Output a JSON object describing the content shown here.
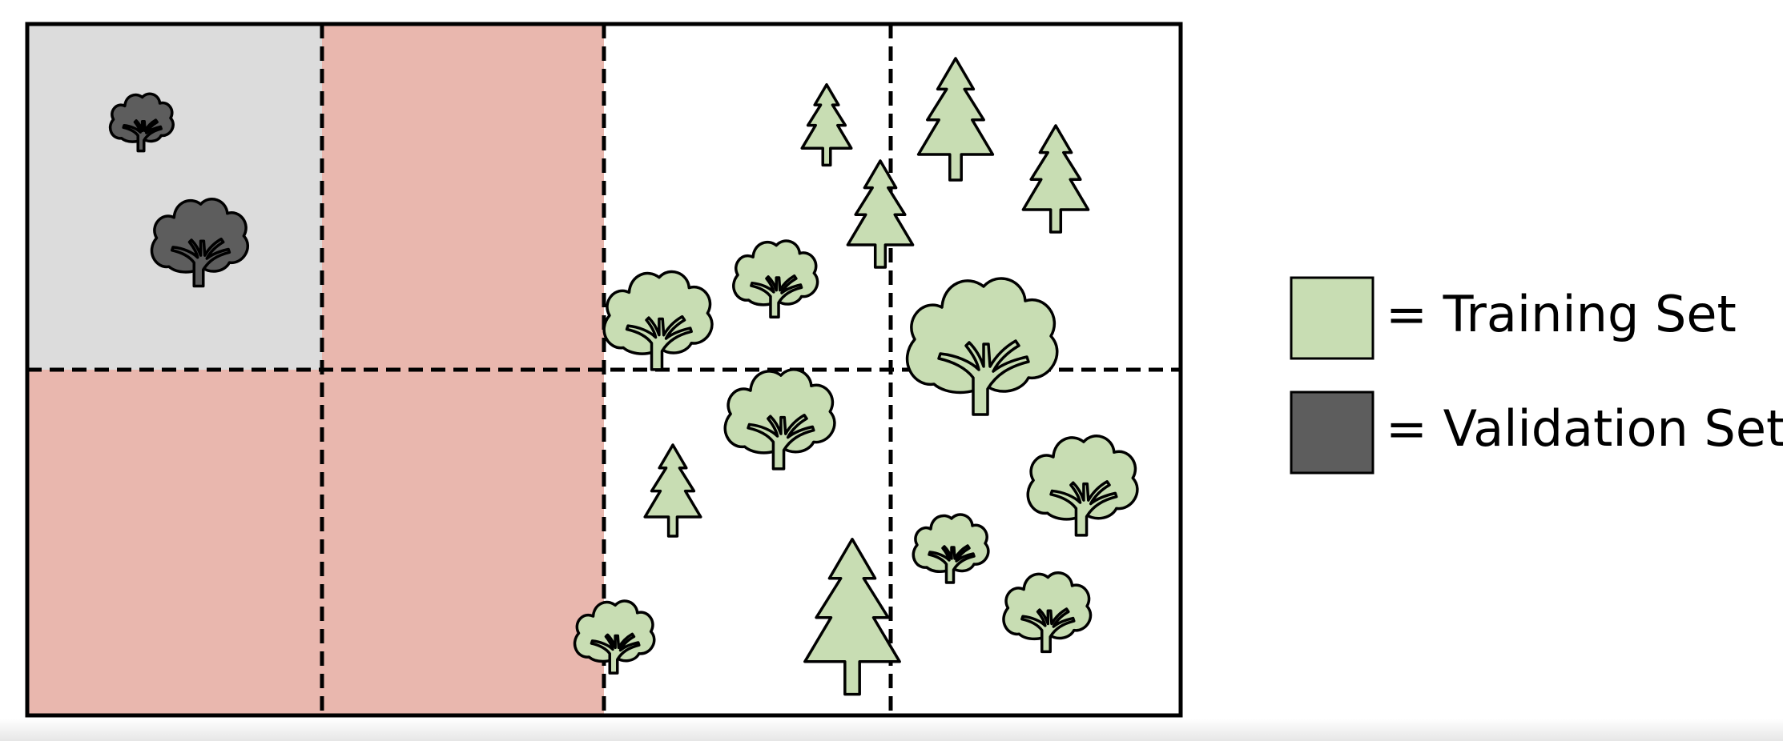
{
  "colors": {
    "training": "#c8ddb3",
    "validation": "#5d5d5d",
    "validation_cell": "#dcdcdc",
    "excluded_cell": "#e9b7ae",
    "open_cell": "#ffffff",
    "outline": "#000000"
  },
  "legend": {
    "training_label": "= Training Set",
    "validation_label": "= Validation Set"
  },
  "grid": {
    "columns": 4,
    "rows": 2,
    "cells": [
      {
        "row": 0,
        "col": 0,
        "state": "validation"
      },
      {
        "row": 0,
        "col": 1,
        "state": "excluded"
      },
      {
        "row": 0,
        "col": 2,
        "state": "open"
      },
      {
        "row": 0,
        "col": 3,
        "state": "open"
      },
      {
        "row": 1,
        "col": 0,
        "state": "excluded"
      },
      {
        "row": 1,
        "col": 1,
        "state": "excluded"
      },
      {
        "row": 1,
        "col": 2,
        "state": "open"
      },
      {
        "row": 1,
        "col": 3,
        "state": "open"
      }
    ]
  },
  "trees": [
    {
      "kind": "deciduous",
      "set": "validation"
    },
    {
      "kind": "deciduous",
      "set": "validation"
    },
    {
      "kind": "conifer",
      "set": "training"
    },
    {
      "kind": "conifer",
      "set": "training"
    },
    {
      "kind": "conifer",
      "set": "training"
    },
    {
      "kind": "conifer",
      "set": "training"
    },
    {
      "kind": "deciduous",
      "set": "training"
    },
    {
      "kind": "deciduous",
      "set": "training"
    },
    {
      "kind": "deciduous",
      "set": "training"
    },
    {
      "kind": "deciduous",
      "set": "training"
    },
    {
      "kind": "conifer",
      "set": "training"
    },
    {
      "kind": "deciduous",
      "set": "training"
    },
    {
      "kind": "deciduous",
      "set": "training"
    },
    {
      "kind": "deciduous",
      "set": "training"
    },
    {
      "kind": "deciduous",
      "set": "training"
    },
    {
      "kind": "conifer",
      "set": "training"
    }
  ]
}
